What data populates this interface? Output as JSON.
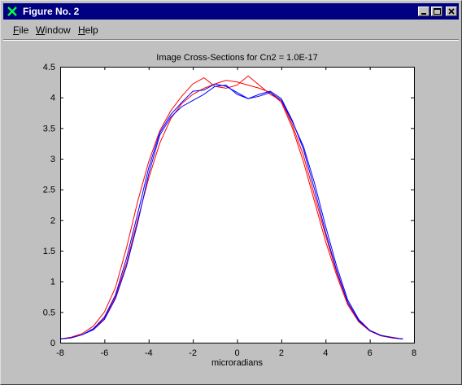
{
  "window": {
    "title": "Figure No. 2",
    "menu": [
      {
        "label": "File",
        "mnemonic": "F",
        "rest": "ile"
      },
      {
        "label": "Window",
        "mnemonic": "W",
        "rest": "indow"
      },
      {
        "label": "Help",
        "mnemonic": "H",
        "rest": "elp"
      }
    ],
    "buttons": [
      "minimize",
      "maximize",
      "close"
    ]
  },
  "chart_data": {
    "type": "line",
    "title": "Image Cross-Sections for Cn2 = 1.0E-17",
    "xlabel": "microradians",
    "ylabel": "",
    "xlim": [
      -8,
      8
    ],
    "ylim": [
      0,
      4.5
    ],
    "xticks": [
      "-8",
      "-6",
      "-4",
      "-2",
      "0",
      "2",
      "4",
      "6",
      "8"
    ],
    "yticks": [
      "0",
      "0.5",
      "1",
      "1.5",
      "2",
      "2.5",
      "3",
      "3.5",
      "4",
      "4.5"
    ],
    "grid": false,
    "legend": "none",
    "x": [
      -8,
      -7.5,
      -7,
      -6.5,
      -6,
      -5.5,
      -5,
      -4.5,
      -4,
      -3.5,
      -3,
      -2.5,
      -2,
      -1.5,
      -1,
      -0.5,
      0,
      0.5,
      1,
      1.5,
      2,
      2.5,
      3,
      3.5,
      4,
      4.5,
      5,
      5.5,
      6,
      6.5,
      7,
      7.5
    ],
    "series": [
      {
        "color": "#ff0000",
        "values": [
          0.06,
          0.09,
          0.15,
          0.27,
          0.5,
          0.9,
          1.55,
          2.3,
          2.95,
          3.45,
          3.78,
          4.02,
          4.22,
          4.32,
          4.18,
          4.15,
          4.2,
          4.35,
          4.2,
          4.05,
          3.95,
          3.55,
          3.05,
          2.4,
          1.75,
          1.15,
          0.65,
          0.35,
          0.2,
          0.12,
          0.09,
          0.06
        ]
      },
      {
        "color": "#ff0000",
        "values": [
          0.06,
          0.08,
          0.13,
          0.22,
          0.4,
          0.75,
          1.3,
          2.0,
          2.68,
          3.25,
          3.65,
          3.9,
          4.05,
          4.15,
          4.22,
          4.28,
          4.25,
          4.2,
          4.15,
          4.08,
          3.92,
          3.5,
          2.95,
          2.3,
          1.65,
          1.1,
          0.62,
          0.34,
          0.19,
          0.11,
          0.08,
          0.06
        ]
      },
      {
        "color": "#0000ff",
        "values": [
          0.06,
          0.08,
          0.13,
          0.21,
          0.38,
          0.72,
          1.25,
          1.95,
          2.75,
          3.38,
          3.68,
          3.85,
          3.95,
          4.05,
          4.18,
          4.2,
          4.05,
          3.98,
          4.02,
          4.08,
          3.95,
          3.6,
          3.2,
          2.6,
          1.9,
          1.25,
          0.7,
          0.38,
          0.2,
          0.12,
          0.08,
          0.06
        ]
      },
      {
        "color": "#0000ff",
        "values": [
          0.06,
          0.08,
          0.13,
          0.23,
          0.42,
          0.78,
          1.38,
          2.1,
          2.85,
          3.42,
          3.72,
          3.92,
          4.1,
          4.12,
          4.22,
          4.18,
          4.08,
          3.98,
          4.05,
          4.1,
          3.98,
          3.62,
          3.15,
          2.5,
          1.8,
          1.18,
          0.66,
          0.36,
          0.2,
          0.12,
          0.08,
          0.06
        ]
      }
    ]
  }
}
